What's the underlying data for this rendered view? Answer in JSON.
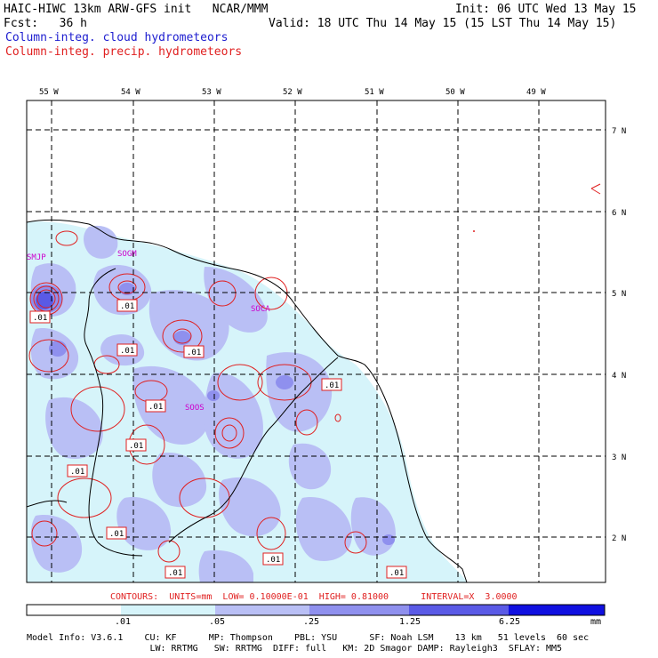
{
  "header": {
    "title": "HAIC-HIWC 13km ARW-GFS init   NCAR/MMM",
    "init": "Init: 06 UTC Wed 13 May 15",
    "fcst": "Fcst:   36 h",
    "valid": "Valid: 18 UTC Thu 14 May 15 (15 LST Thu 14 May 15)",
    "field1": "Column-integ. cloud hydrometeors",
    "field2": "Column-integ. precip. hydrometeors"
  },
  "map": {
    "lon_labels": [
      "55 W",
      "54 W",
      "53 W",
      "52 W",
      "51 W",
      "50 W",
      "49 W"
    ],
    "lat_labels": [
      "7 N",
      "6 N",
      "5 N",
      "4 N",
      "3 N",
      "2 N"
    ],
    "stations": [
      "SMJP",
      "SOGM",
      "SOCA",
      "SOOS"
    ],
    "contour_label": ".01"
  },
  "contours_line": "CONTOURS:  UNITS=mm  LOW= 0.10000E-01  HIGH= 0.81000      INTERVAL=X  3.0000",
  "colorbar": {
    "ticks": [
      ".01",
      ".05",
      ".25",
      "1.25",
      "6.25"
    ],
    "units": "mm",
    "colors": [
      "#ffffff",
      "#d6f4fa",
      "#b9bff5",
      "#9090ee",
      "#6060e8",
      "#3030e0",
      "#1010e0"
    ]
  },
  "model_info": {
    "line1": "Model Info: V3.6.1    CU: KF      MP: Thompson    PBL: YSU      SF: Noah LSM    13 km   51 levels  60 sec",
    "line2": "                       LW: RRTMG   SW: RRTMG  DIFF: full   KM: 2D Smagor DAMP: Rayleigh3  SFLAY: MM5"
  }
}
